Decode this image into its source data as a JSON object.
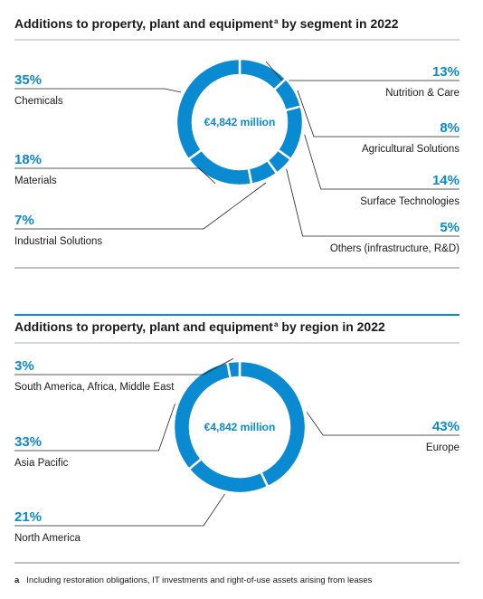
{
  "chart_data": [
    {
      "type": "pie",
      "title": "Additions to property, plant and equipment",
      "title_marker": "a",
      "title_rest": "by segment in 2022",
      "center_label": "€4,842 million",
      "color": "#0a8ad0",
      "categories": [
        "Nutrition & Care",
        "Agricultural Solutions",
        "Surface Technologies",
        "Others (infrastructure, R&D)",
        "Industrial Solutions",
        "Materials",
        "Chemicals"
      ],
      "values": [
        13,
        8,
        14,
        5,
        7,
        18,
        35
      ],
      "value_labels": [
        "13%",
        "8%",
        "14%",
        "5%",
        "7%",
        "18%",
        "35%"
      ]
    },
    {
      "type": "pie",
      "title": "Additions to property, plant and equipment",
      "title_marker": "a",
      "title_rest": "by region in 2022",
      "center_label": "€4,842 million",
      "color": "#0a8ad0",
      "categories": [
        "Europe",
        "North America",
        "Asia Pacific",
        "South America, Africa, Middle East"
      ],
      "values": [
        43,
        21,
        33,
        3
      ],
      "value_labels": [
        "43%",
        "21%",
        "33%",
        "3%"
      ]
    }
  ],
  "footnote": {
    "marker": "a",
    "text": "Including restoration obligations, IT investments and right-of-use assets arising from leases"
  }
}
